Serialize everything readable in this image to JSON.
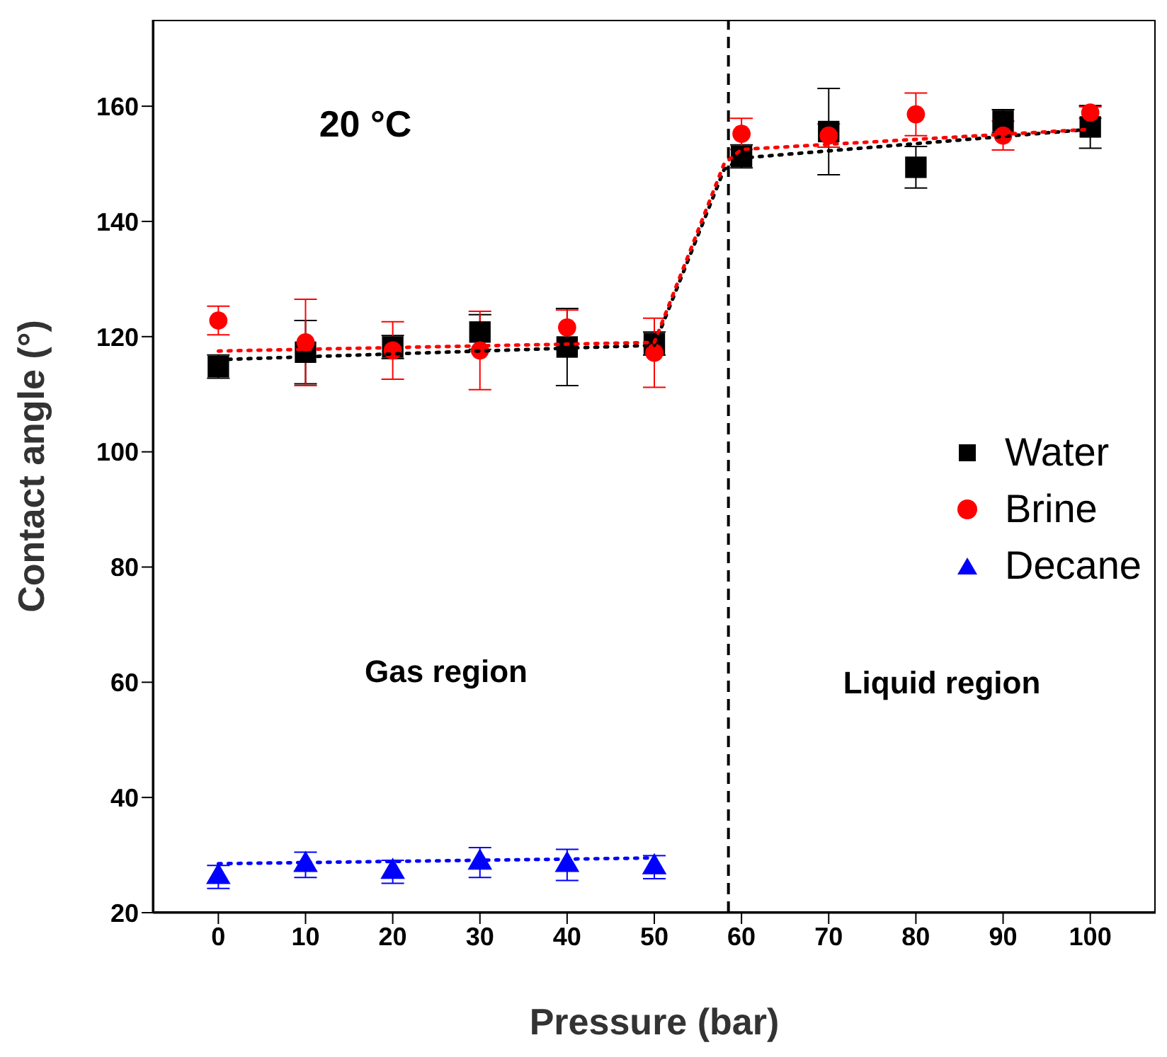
{
  "chart_data": {
    "type": "scatter",
    "xlabel": "Pressure (bar)",
    "ylabel": "Contact angle (°)",
    "xlim": [
      -7.5,
      107.5
    ],
    "xticks": [
      0,
      10,
      20,
      30,
      40,
      50,
      60,
      70,
      80,
      90,
      100
    ],
    "ylim": [
      20,
      175
    ],
    "yticks": [
      20,
      40,
      60,
      80,
      100,
      120,
      140,
      160
    ],
    "grid": false,
    "legend": "right",
    "series": [
      {
        "name": "Water",
        "color": "#000000",
        "marker": "square",
        "x": [
          0,
          10,
          20,
          30,
          40,
          50,
          60,
          70,
          80,
          90,
          100
        ],
        "values": [
          114.8,
          117.3,
          118.2,
          120.8,
          118.2,
          118.8,
          151.3,
          155.6,
          149.4,
          157.4,
          156.4
        ],
        "errors": [
          2,
          5.5,
          2,
          3,
          6.7,
          2,
          2,
          7.5,
          3.6,
          2,
          3.7
        ]
      },
      {
        "name": "Brine",
        "color": "#ff0000",
        "marker": "circle",
        "x": [
          0,
          10,
          20,
          30,
          40,
          50,
          60,
          70,
          80,
          90,
          100
        ],
        "values": [
          122.8,
          119,
          117.6,
          117.6,
          121.6,
          117.2,
          155.2,
          154.9,
          158.6,
          154.9,
          158.9
        ],
        "errors": [
          2.5,
          7.5,
          5,
          6.8,
          3,
          6,
          2.7,
          2,
          3.7,
          2.5,
          1
        ]
      },
      {
        "name": "Decane",
        "color": "#0000ff",
        "marker": "triangle",
        "x": [
          0,
          10,
          20,
          30,
          40,
          50
        ],
        "values": [
          26.2,
          28.3,
          27.1,
          28.7,
          28.3,
          27.9
        ],
        "errors": [
          2,
          2.2,
          2,
          2.6,
          2.7,
          2
        ]
      },
      {
        "type": "line",
        "color": "#000000",
        "line_style": "dotted",
        "x": [
          0,
          50,
          58,
          60,
          100
        ],
        "values": [
          116,
          118.5,
          149,
          151,
          156
        ]
      },
      {
        "type": "line",
        "color": "#ff0000",
        "line_style": "dotted",
        "x": [
          0,
          50,
          58,
          60,
          100
        ],
        "values": [
          117.5,
          119,
          150,
          152.5,
          156
        ]
      },
      {
        "type": "line",
        "color": "#0000ff",
        "line_style": "dotted",
        "x": [
          0,
          50
        ],
        "values": [
          28.5,
          29.5
        ]
      }
    ],
    "ref_lines": [
      {
        "axis": "x",
        "value": 58.5,
        "color": "#000000",
        "line_style": "dashed"
      }
    ],
    "annotations": [
      "20 °C",
      "Gas region",
      "Liquid region"
    ]
  }
}
